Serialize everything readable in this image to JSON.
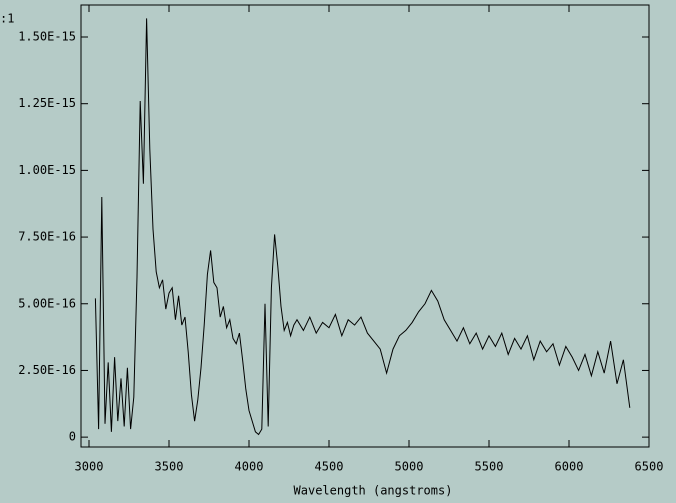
{
  "chart_data": {
    "type": "line",
    "corner_label": ":1",
    "xlabel": "Wavelength (angstroms)",
    "color": "#000000",
    "background": "#b5cbc7",
    "x": [
      3040,
      3060,
      3080,
      3100,
      3120,
      3140,
      3160,
      3180,
      3200,
      3220,
      3240,
      3260,
      3280,
      3300,
      3320,
      3340,
      3360,
      3380,
      3400,
      3420,
      3440,
      3460,
      3480,
      3500,
      3520,
      3540,
      3560,
      3580,
      3600,
      3620,
      3640,
      3660,
      3680,
      3700,
      3720,
      3740,
      3760,
      3780,
      3800,
      3820,
      3840,
      3860,
      3880,
      3900,
      3920,
      3940,
      3960,
      3980,
      4000,
      4020,
      4040,
      4060,
      4080,
      4100,
      4120,
      4140,
      4160,
      4180,
      4200,
      4220,
      4240,
      4260,
      4280,
      4300,
      4340,
      4380,
      4420,
      4460,
      4500,
      4540,
      4580,
      4620,
      4660,
      4700,
      4740,
      4780,
      4820,
      4860,
      4900,
      4940,
      4980,
      5020,
      5060,
      5100,
      5140,
      5180,
      5220,
      5260,
      5300,
      5340,
      5380,
      5420,
      5460,
      5500,
      5540,
      5580,
      5620,
      5660,
      5700,
      5740,
      5780,
      5820,
      5860,
      5900,
      5940,
      5980,
      6020,
      6060,
      6100,
      6140,
      6180,
      6220,
      6260,
      6300,
      6340,
      6380
    ],
    "values": [
      5.2e-16,
      3e-17,
      9e-16,
      5e-17,
      2.8e-16,
      2e-17,
      3e-16,
      6e-17,
      2.2e-16,
      4e-17,
      2.6e-16,
      3e-17,
      1.5e-16,
      6e-16,
      1.26e-15,
      9.5e-16,
      1.57e-15,
      1.08e-15,
      7.8e-16,
      6.2e-16,
      5.6e-16,
      5.9e-16,
      4.8e-16,
      5.4e-16,
      5.6e-16,
      4.4e-16,
      5.3e-16,
      4.2e-16,
      4.5e-16,
      3.2e-16,
      1.6e-16,
      6e-17,
      1.4e-16,
      2.6e-16,
      4.2e-16,
      6.1e-16,
      7e-16,
      5.8e-16,
      5.6e-16,
      4.5e-16,
      4.9e-16,
      4.1e-16,
      4.4e-16,
      3.7e-16,
      3.5e-16,
      3.9e-16,
      2.9e-16,
      1.8e-16,
      1e-16,
      6e-17,
      2e-17,
      1e-17,
      3e-17,
      5e-16,
      4e-17,
      5.6e-16,
      7.6e-16,
      6.4e-16,
      4.9e-16,
      4e-16,
      4.3e-16,
      3.8e-16,
      4.2e-16,
      4.4e-16,
      4e-16,
      4.5e-16,
      3.9e-16,
      4.3e-16,
      4.1e-16,
      4.6e-16,
      3.8e-16,
      4.4e-16,
      4.2e-16,
      4.5e-16,
      3.9e-16,
      3.6e-16,
      3.3e-16,
      2.4e-16,
      3.3e-16,
      3.8e-16,
      4e-16,
      4.3e-16,
      4.7e-16,
      5e-16,
      5.5e-16,
      5.1e-16,
      4.4e-16,
      4e-16,
      3.6e-16,
      4.1e-16,
      3.5e-16,
      3.9e-16,
      3.3e-16,
      3.8e-16,
      3.4e-16,
      3.9e-16,
      3.1e-16,
      3.7e-16,
      3.3e-16,
      3.8e-16,
      2.9e-16,
      3.6e-16,
      3.2e-16,
      3.5e-16,
      2.7e-16,
      3.4e-16,
      3e-16,
      2.5e-16,
      3.1e-16,
      2.3e-16,
      3.2e-16,
      2.4e-16,
      3.6e-16,
      2e-16,
      2.9e-16,
      1.1e-16
    ],
    "xlim": [
      2950,
      6500
    ],
    "ylim": [
      -3.7e-17,
      1.62e-15
    ],
    "xticks": [
      3000,
      3500,
      4000,
      4500,
      5000,
      5500,
      6000,
      6500
    ],
    "yticks": [
      0,
      {
        "value": 2.5e-16,
        "label": "2.50E-16"
      },
      {
        "value": 5e-16,
        "label": "5.00E-16"
      },
      {
        "value": 7.5e-16,
        "label": "7.50E-16"
      },
      {
        "value": 1e-15,
        "label": "1.00E-15"
      },
      {
        "value": 1.25e-15,
        "label": "1.25E-15"
      },
      {
        "value": 1.5e-15,
        "label": "1.50E-15"
      }
    ]
  }
}
